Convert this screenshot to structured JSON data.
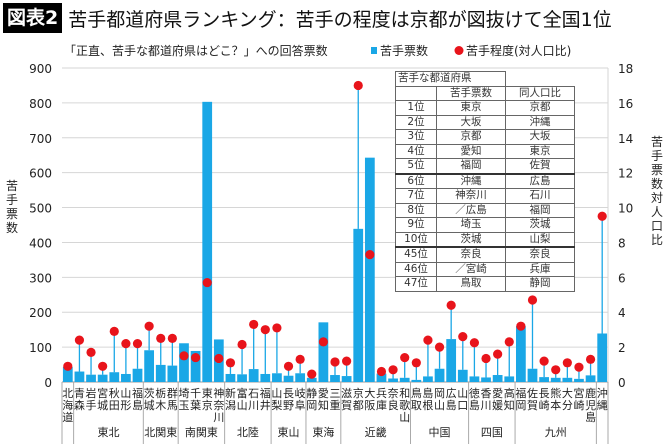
{
  "header": {
    "badge": "図表2",
    "title": "苦手都道府県ランキング：苦手の程度は京都が図抜けて全国1位"
  },
  "chart_data": {
    "type": "bar+dot",
    "subtitle": "「正直、苦手な都道府県はどこ？」への回答票数",
    "ylabel": "苦手票数",
    "y2label": "苦手票数対人口比",
    "ylim": [
      0,
      900
    ],
    "yticks": [
      0,
      100,
      200,
      300,
      400,
      500,
      600,
      700,
      800,
      900
    ],
    "y2lim": [
      0,
      18
    ],
    "y2ticks": [
      0,
      2,
      4,
      6,
      8,
      10,
      12,
      14,
      16,
      18
    ],
    "grid": true,
    "legend_placement": "top-right",
    "categories": [
      "北海道",
      "青森",
      "岩手",
      "宮城",
      "秋田",
      "山形",
      "福島",
      "茨城",
      "栃木",
      "群馬",
      "埼玉",
      "千葉",
      "東京",
      "神奈川",
      "新潟",
      "富山",
      "石川",
      "福井",
      "山梨",
      "長野",
      "岐阜",
      "静岡",
      "愛知",
      "三重",
      "滋賀",
      "京都",
      "大阪",
      "兵庫",
      "奈良",
      "和歌山",
      "鳥取",
      "島根",
      "岡山",
      "広島",
      "山口",
      "徳島",
      "香川",
      "愛媛",
      "高知",
      "福岡",
      "佐賀",
      "長崎",
      "熊本",
      "大分",
      "宮崎",
      "鹿児島",
      "沖縄"
    ],
    "groups": [
      {
        "label": "",
        "count": 1
      },
      {
        "label": "東北",
        "count": 6
      },
      {
        "label": "北関東",
        "count": 3
      },
      {
        "label": "南関東",
        "count": 4
      },
      {
        "label": "北陸",
        "count": 4
      },
      {
        "label": "東山",
        "count": 3
      },
      {
        "label": "東海",
        "count": 3
      },
      {
        "label": "近畿",
        "count": 6
      },
      {
        "label": "中国",
        "count": 5
      },
      {
        "label": "四国",
        "count": 4
      },
      {
        "label": "九州",
        "count": 7
      },
      {
        "label": "",
        "count": 1
      }
    ],
    "series": [
      {
        "name": "苦手票数",
        "type": "bar",
        "axis": "left",
        "color": "#1aa7e6",
        "values": [
          43,
          30,
          21,
          21,
          28,
          23,
          38,
          91,
          49,
          47,
          111,
          89,
          803,
          122,
          23,
          22,
          37,
          23,
          25,
          18,
          25,
          12,
          171,
          20,
          17,
          439,
          643,
          24,
          10,
          12,
          6,
          16,
          38,
          123,
          35,
          16,
          13,
          20,
          16,
          160,
          38,
          14,
          12,
          12,
          9,
          19,
          139
        ]
      },
      {
        "name": "苦手程度(対人口比)",
        "type": "dot",
        "axis": "right",
        "color": "#e8141b",
        "values": [
          0.9,
          2.4,
          1.7,
          0.9,
          2.9,
          2.2,
          2.2,
          3.2,
          2.5,
          2.5,
          1.5,
          1.4,
          5.7,
          1.35,
          1.1,
          2.15,
          3.3,
          3.0,
          3.1,
          0.9,
          1.3,
          0.45,
          2.3,
          1.15,
          1.2,
          17.0,
          7.3,
          0.6,
          0.7,
          1.4,
          1.1,
          2.4,
          2.0,
          4.4,
          2.6,
          2.25,
          1.35,
          1.6,
          2.3,
          3.2,
          4.7,
          1.2,
          0.7,
          1.1,
          0.85,
          1.3,
          9.5
        ]
      }
    ]
  },
  "ranking_table": {
    "title": "苦手な都道府県",
    "columns": [
      "",
      "苦手票数",
      "同人口比"
    ],
    "rows": [
      [
        "1位",
        "東京",
        "京都"
      ],
      [
        "2位",
        "大坂",
        "沖縄"
      ],
      [
        "3位",
        "京都",
        "大坂"
      ],
      [
        "4位",
        "愛知",
        "東京"
      ],
      [
        "5位",
        "福岡",
        "佐賀"
      ],
      [
        "6位",
        "沖縄",
        "広島"
      ],
      [
        "7位",
        "神奈川",
        "石川"
      ],
      [
        "8位",
        "／広島",
        "福岡"
      ],
      [
        "9位",
        "埼玉",
        "茨城"
      ],
      [
        "10位",
        "茨城",
        "山梨"
      ],
      [
        "45位",
        "奈良",
        "奈良"
      ],
      [
        "46位",
        "／宮崎",
        "兵庫"
      ],
      [
        "47位",
        "鳥取",
        "静岡"
      ]
    ]
  }
}
